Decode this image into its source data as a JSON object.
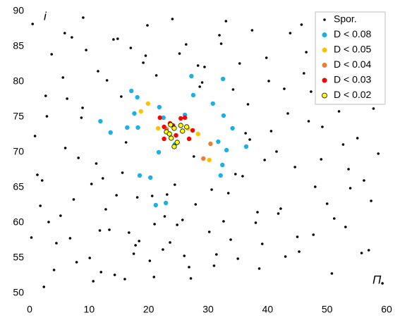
{
  "chart_data": {
    "type": "scatter",
    "x_label": "Π",
    "y_label": "i",
    "xlim": [
      0,
      60
    ],
    "xticks": [
      0,
      10,
      20,
      30,
      40,
      50,
      60
    ],
    "ylim": [
      50,
      90
    ],
    "yticks": [
      50,
      55,
      60,
      65,
      70,
      75,
      80,
      85,
      90
    ],
    "legend": "upper right",
    "series": [
      {
        "name": "Spor.",
        "color": "#000000",
        "x": [
          0.5,
          1.8,
          2.9,
          4.1,
          5.6,
          6.8,
          8.2,
          9.5,
          10.7,
          12.3,
          13.4,
          14.8,
          16.2,
          17.5,
          19.1,
          20.6,
          22.4,
          24.0,
          25.7,
          27.1,
          28.6,
          30.2,
          31.9,
          33.4,
          35.0,
          36.7,
          38.3,
          39.8,
          41.5,
          43.0,
          44.6,
          46.1,
          47.7,
          49.2,
          50.8,
          52.3,
          53.9,
          55.4,
          57.0,
          58.6,
          0.9,
          2.4,
          3.7,
          5.2,
          6.3,
          7.9,
          9.0,
          10.4,
          11.8,
          13.0,
          14.3,
          15.6,
          17.0,
          18.4,
          19.8,
          21.3,
          23.1,
          24.8,
          26.3,
          27.9,
          29.4,
          31.0,
          32.6,
          34.2,
          35.8,
          37.4,
          39.1,
          40.6,
          42.2,
          43.8,
          45.3,
          46.9,
          48.4,
          50.0,
          51.6,
          53.1,
          54.7,
          56.2,
          57.8,
          59.3,
          1.3,
          2.7,
          4.5,
          5.9,
          7.4,
          8.7,
          10.1,
          11.5,
          12.8,
          14.1,
          15.4,
          16.7,
          18.1,
          19.5,
          20.9,
          22.7,
          24.4,
          26.0,
          27.6,
          29.0,
          30.6,
          32.2,
          33.8,
          35.3,
          37.0,
          38.6,
          40.2,
          41.8,
          43.4,
          45.0,
          46.5,
          48.0,
          49.6,
          51.2,
          52.7,
          54.3,
          55.8,
          57.4,
          58.9,
          0.3,
          3.2,
          6.0,
          8.9,
          11.2,
          14.6,
          17.8,
          21.0,
          25.2,
          28.3,
          33.0,
          36.3,
          39.5,
          42.8,
          45.7,
          49.0,
          52.0,
          55.1,
          58.1,
          2.1,
          7.1,
          12.0,
          16.0,
          20.2,
          23.6,
          26.8,
          31.4,
          34.6,
          38.0,
          47.3,
          53.6
        ],
        "values": [
          88.2,
          62.4,
          75.1,
          53.3,
          80.6,
          57.8,
          69.2,
          84.5,
          51.7,
          66.3,
          59.0,
          86.1,
          71.4,
          55.6,
          82.7,
          63.8,
          56.2,
          88.9,
          60.4,
          52.1,
          79.3,
          58.7,
          86.6,
          64.2,
          54.9,
          76.8,
          61.5,
          83.4,
          70.1,
          55.2,
          67.9,
          81.2,
          58.3,
          73.6,
          52.8,
          85.7,
          64.9,
          77.0,
          56.1,
          69.8,
          72.3,
          50.9,
          83.9,
          61.0,
          77.6,
          54.4,
          89.1,
          65.5,
          58.9,
          80.2,
          52.6,
          67.1,
          84.8,
          57.4,
          88.0,
          80.9,
          64.0,
          59.7,
          85.3,
          62.6,
          82.1,
          53.9,
          60.2,
          78.9,
          66.6,
          87.3,
          57.0,
          73.0,
          62.0,
          86.9,
          55.9,
          74.4,
          83.0,
          62.7,
          79.8,
          59.4,
          88.4,
          66.0,
          76.2,
          51.4,
          66.8,
          78.0,
          57.1,
          86.9,
          63.3,
          74.9,
          55.0,
          81.5,
          61.9,
          86.0,
          77.9,
          58.6,
          63.6,
          83.7,
          52.3,
          60.9,
          65.4,
          55.3,
          69.4,
          79.9,
          64.7,
          85.4,
          57.6,
          82.6,
          71.8,
          53.5,
          80.1,
          61.3,
          75.5,
          58.0,
          84.2,
          65.1,
          77.4,
          60.6,
          71.1,
          81.9,
          55.7,
          63.1,
          84.9,
          57.9,
          60.1,
          70.6,
          76.3,
          68.4,
          63.9,
          56.8,
          59.8,
          84.0,
          82.3,
          88.6,
          72.7,
          68.9,
          79.0,
          88.1,
          69.0,
          75.8,
          72.0,
          82.4,
          66.0,
          86.3,
          53.0,
          52.0,
          54.6,
          57.2,
          53.7,
          55.5,
          66.9,
          60.0,
          78.6,
          67.6
        ]
      },
      {
        "name": "D < 0.08",
        "color": "#1ab0e8",
        "x": [
          11.9,
          13.6,
          17.1,
          18.1,
          17.6,
          16.4,
          18.2,
          18.5,
          20.3,
          21.2,
          22.9,
          21.7,
          21.8,
          22.5,
          27.2,
          27.5,
          32.5,
          30.8,
          32.6,
          34.1,
          31.7,
          33.1,
          32.4,
          32.1,
          36.4,
          26.1,
          24.4
        ],
        "values": [
          74.4,
          72.8,
          78.7,
          77.8,
          75.5,
          73.5,
          73.5,
          66.7,
          66.4,
          62.5,
          62.8,
          70.0,
          76.4,
          74.9,
          80.8,
          78.1,
          80.4,
          76.9,
          75.2,
          73.4,
          71.5,
          70.3,
          68.2,
          66.7,
          70.8,
          75.3,
          71.1
        ]
      },
      {
        "name": "D < 0.05",
        "color": "#ffc000",
        "x": [
          19.9,
          18.7,
          21.6,
          28.3,
          30.2,
          26.6
        ],
        "values": [
          76.9,
          75.8,
          73.4,
          72.6,
          68.9,
          73.4
        ]
      },
      {
        "name": "D < 0.04",
        "color": "#ed7d31",
        "x": [
          30.4,
          29.2,
          23.0
        ],
        "values": [
          71.2,
          69.1,
          73.3
        ]
      },
      {
        "name": "D < 0.03",
        "color": "#ff0000",
        "x": [
          21.9,
          22.6,
          23.6,
          22.6,
          25.4,
          26.1,
          27.4,
          26.8,
          24.6,
          24.1
        ],
        "values": [
          74.9,
          73.6,
          74.1,
          71.9,
          74.8,
          74.9,
          73.1,
          71.9,
          72.4,
          73.8
        ]
      },
      {
        "name": "D < 0.02",
        "color": "#ffff00",
        "edgecolor": "#000000",
        "x": [
          23.0,
          23.7,
          24.3,
          23.8,
          24.3,
          24.8,
          25.7,
          26.4,
          23.5,
          25.4
        ],
        "values": [
          72.9,
          73.9,
          73.4,
          72.0,
          70.8,
          71.4,
          73.0,
          73.6,
          72.6,
          73.8
        ]
      }
    ]
  }
}
